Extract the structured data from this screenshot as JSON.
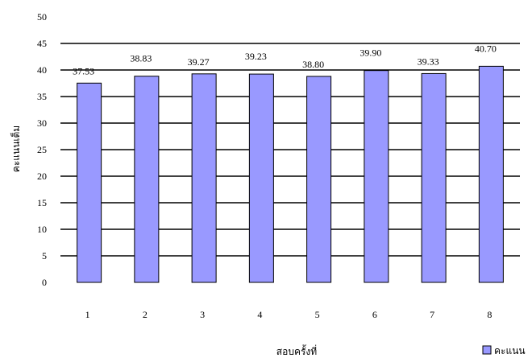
{
  "chart_data": {
    "type": "bar",
    "categories": [
      "1",
      "2",
      "3",
      "4",
      "5",
      "6",
      "7",
      "8"
    ],
    "series": [
      {
        "name": "คะแนน",
        "values": [
          37.53,
          38.83,
          39.27,
          39.23,
          38.8,
          39.9,
          39.33,
          40.7
        ]
      }
    ],
    "data_labels": [
      "37.53",
      "38.83",
      "39.27",
      "39.23",
      "38.80",
      "39.90",
      "39.33",
      "40.70"
    ],
    "xlabel": "สอบครั้งที่",
    "ylabel": "คะแนนเต็ม",
    "ylim": [
      0,
      50
    ],
    "yticks": [
      "0",
      "5",
      "10",
      "15",
      "20",
      "25",
      "30",
      "35",
      "40",
      "45",
      "50"
    ],
    "grid": true,
    "legend_position": "bottom-right",
    "colors": {
      "bar_fill": "#9999ff",
      "bar_stroke": "#000000",
      "gridline": "#000000"
    }
  }
}
